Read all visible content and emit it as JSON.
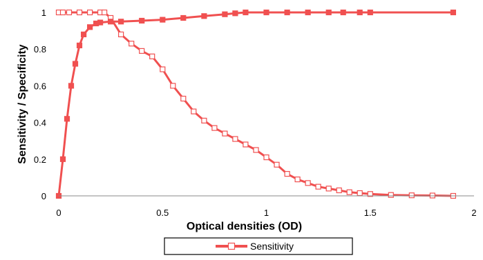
{
  "chart_data": {
    "type": "line",
    "title": "",
    "xlabel": "Optical densities (OD)",
    "ylabel": "Sensitivity / Specificity",
    "xlim": [
      0,
      2
    ],
    "ylim": [
      0,
      1
    ],
    "x_ticks": [
      0,
      0.5,
      1,
      1.5,
      2
    ],
    "x_tick_labels": [
      "0",
      "0.5",
      "1",
      "1.5",
      "2"
    ],
    "y_ticks": [
      0,
      0.2,
      0.4,
      0.6,
      0.8,
      1
    ],
    "y_tick_labels": [
      "0",
      "0.2",
      "0.4",
      "0.6",
      "0.8",
      "1"
    ],
    "grid": false,
    "legend": {
      "position": "bottom",
      "entries": [
        "Sensitivity"
      ]
    },
    "colors": {
      "series_line": "#f05050",
      "marker_face": "#ffffff"
    },
    "series": [
      {
        "name": "Sensitivity",
        "marker": "open-square",
        "x": [
          0,
          0.02,
          0.05,
          0.1,
          0.15,
          0.2,
          0.22,
          0.25,
          0.3,
          0.35,
          0.4,
          0.45,
          0.5,
          0.55,
          0.6,
          0.65,
          0.7,
          0.75,
          0.8,
          0.85,
          0.9,
          0.95,
          1.0,
          1.05,
          1.1,
          1.15,
          1.2,
          1.25,
          1.3,
          1.35,
          1.4,
          1.45,
          1.5,
          1.6,
          1.7,
          1.8,
          1.9
        ],
        "values": [
          1,
          1,
          1,
          1,
          1,
          1,
          1,
          0.97,
          0.88,
          0.83,
          0.79,
          0.76,
          0.69,
          0.6,
          0.53,
          0.46,
          0.41,
          0.37,
          0.34,
          0.31,
          0.28,
          0.25,
          0.21,
          0.17,
          0.12,
          0.09,
          0.07,
          0.05,
          0.04,
          0.03,
          0.02,
          0.015,
          0.01,
          0.005,
          0.003,
          0.002,
          0.0
        ]
      },
      {
        "name": "",
        "marker": "filled-square",
        "x": [
          0,
          0.02,
          0.04,
          0.06,
          0.08,
          0.1,
          0.12,
          0.15,
          0.18,
          0.2,
          0.25,
          0.3,
          0.4,
          0.5,
          0.6,
          0.7,
          0.8,
          0.85,
          0.9,
          1.0,
          1.1,
          1.2,
          1.3,
          1.37,
          1.45,
          1.5,
          1.9
        ],
        "values": [
          0,
          0.2,
          0.42,
          0.6,
          0.72,
          0.82,
          0.88,
          0.92,
          0.94,
          0.945,
          0.95,
          0.95,
          0.955,
          0.96,
          0.97,
          0.98,
          0.99,
          0.995,
          1,
          1,
          1,
          1,
          1,
          1,
          1,
          1,
          1
        ]
      }
    ]
  }
}
